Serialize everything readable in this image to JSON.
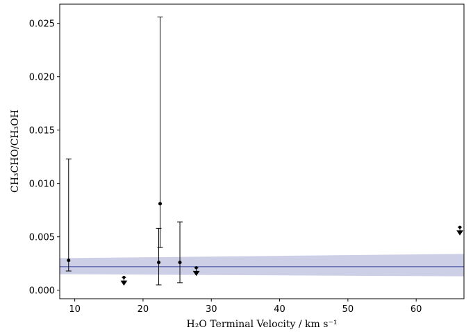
{
  "chart_data": {
    "type": "scatter",
    "xlabel": "H₂O Terminal Velocity / km s⁻¹",
    "ylabel": "CH₃CHO/CH₃OH",
    "xlim": [
      7.8,
      67.0
    ],
    "ylim": [
      -0.0008,
      0.0268
    ],
    "xticks": [
      10,
      20,
      30,
      40,
      50,
      60
    ],
    "yticks": [
      {
        "value": 0,
        "label": "0.000"
      },
      0.005,
      {
        "value": 0.01,
        "label": "0.010"
      },
      0.015,
      {
        "value": 0.02,
        "label": "0.020"
      },
      0.025
    ],
    "measurements": {
      "color": "#000000",
      "x": [
        9.1,
        22.5,
        22.3,
        25.4
      ],
      "values": [
        0.0028,
        0.0081,
        0.0026,
        0.0026
      ],
      "error_low": [
        0.001,
        0.0041,
        0.0021,
        0.0019
      ],
      "error_high": [
        0.0095,
        0.0175,
        0.0032,
        0.0038
      ]
    },
    "upper_limits": {
      "color": "#000000",
      "x": [
        17.2,
        27.8,
        66.4
      ],
      "values": [
        0.0012,
        0.0021,
        0.0059
      ]
    },
    "fit": {
      "color": "#4c56a8",
      "band_color": "#c8cae3",
      "x": [
        7.8,
        67.0
      ],
      "values": [
        0.0022,
        0.0022
      ],
      "band_low": [
        0.0015,
        0.0013
      ],
      "band_high": [
        0.003,
        0.0034
      ]
    }
  }
}
